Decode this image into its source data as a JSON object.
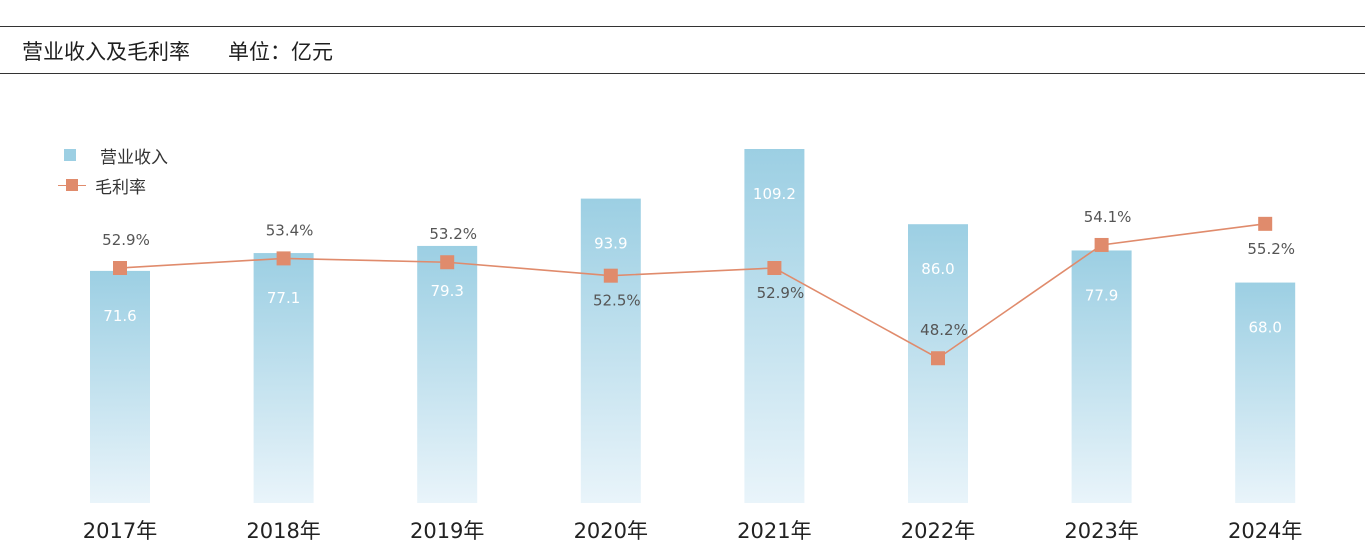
{
  "header": {
    "title": "营业收入及毛利率",
    "unit": "单位：亿元"
  },
  "legend": {
    "bar_label": "营业收入",
    "line_label": "毛利率"
  },
  "colors": {
    "bar_top": "#9ccfe3",
    "bar_bottom": "#e9f4fa",
    "line": "#e08b6c",
    "bar_text": "#ffffff",
    "line_text": "#555555"
  },
  "chart_data": {
    "type": "bar",
    "categories": [
      "2017年",
      "2018年",
      "2019年",
      "2020年",
      "2021年",
      "2022年",
      "2023年",
      "2024年"
    ],
    "series": [
      {
        "name": "营业收入",
        "type": "bar",
        "values": [
          71.6,
          77.1,
          79.3,
          93.9,
          109.2,
          86.0,
          77.9,
          68.0
        ],
        "labels": [
          "71.6",
          "77.1",
          "79.3",
          "93.9",
          "109.2",
          "86.0",
          "77.9",
          "68.0"
        ]
      },
      {
        "name": "毛利率",
        "type": "line",
        "values": [
          52.9,
          53.4,
          53.2,
          52.5,
          52.9,
          48.2,
          54.1,
          55.2
        ],
        "labels": [
          "52.9%",
          "53.4%",
          "53.2%",
          "52.5%",
          "52.9%",
          "48.2%",
          "54.1%",
          "55.2%"
        ]
      }
    ],
    "legend_position": "top-left",
    "grid": false
  }
}
